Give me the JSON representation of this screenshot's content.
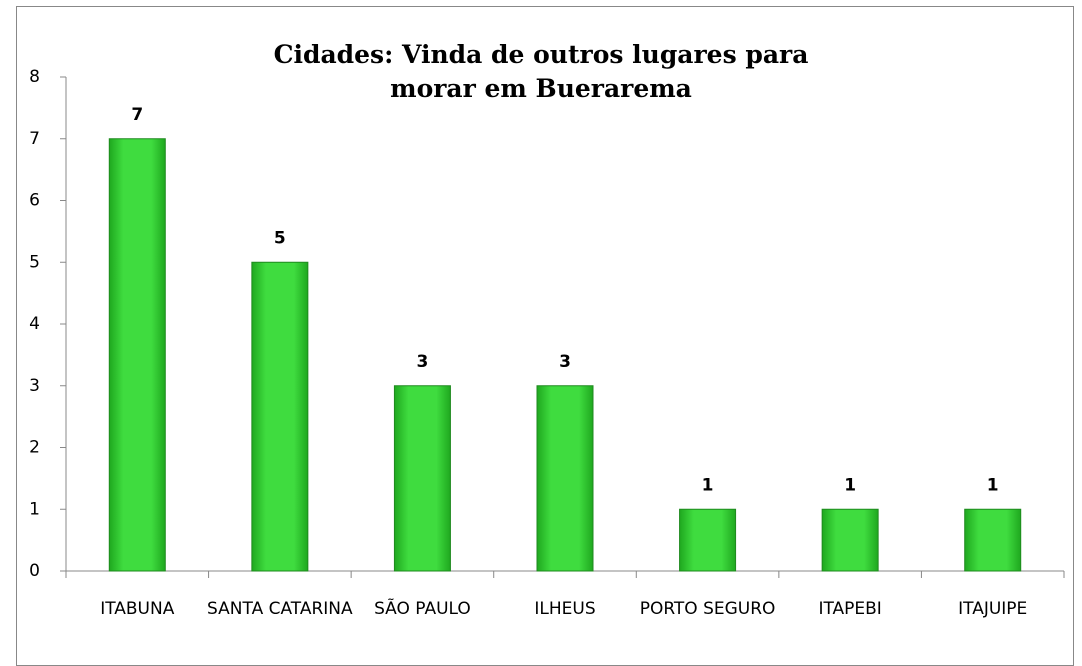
{
  "chart_data": {
    "type": "bar",
    "title": "Cidades: Vinda de outros lugares para morar em Buerarema",
    "categories": [
      "ITABUNA",
      "SANTA CATARINA",
      "SÃO PAULO",
      "ILHEUS",
      "PORTO SEGURO",
      "ITAPEBI",
      "ITAJUIPE"
    ],
    "values": [
      7,
      5,
      3,
      3,
      1,
      1,
      1
    ],
    "color": "#3cd63c",
    "ylim": [
      0,
      8
    ],
    "yticks": [
      0,
      1,
      2,
      3,
      4,
      5,
      6,
      7,
      8
    ],
    "grid": false
  }
}
